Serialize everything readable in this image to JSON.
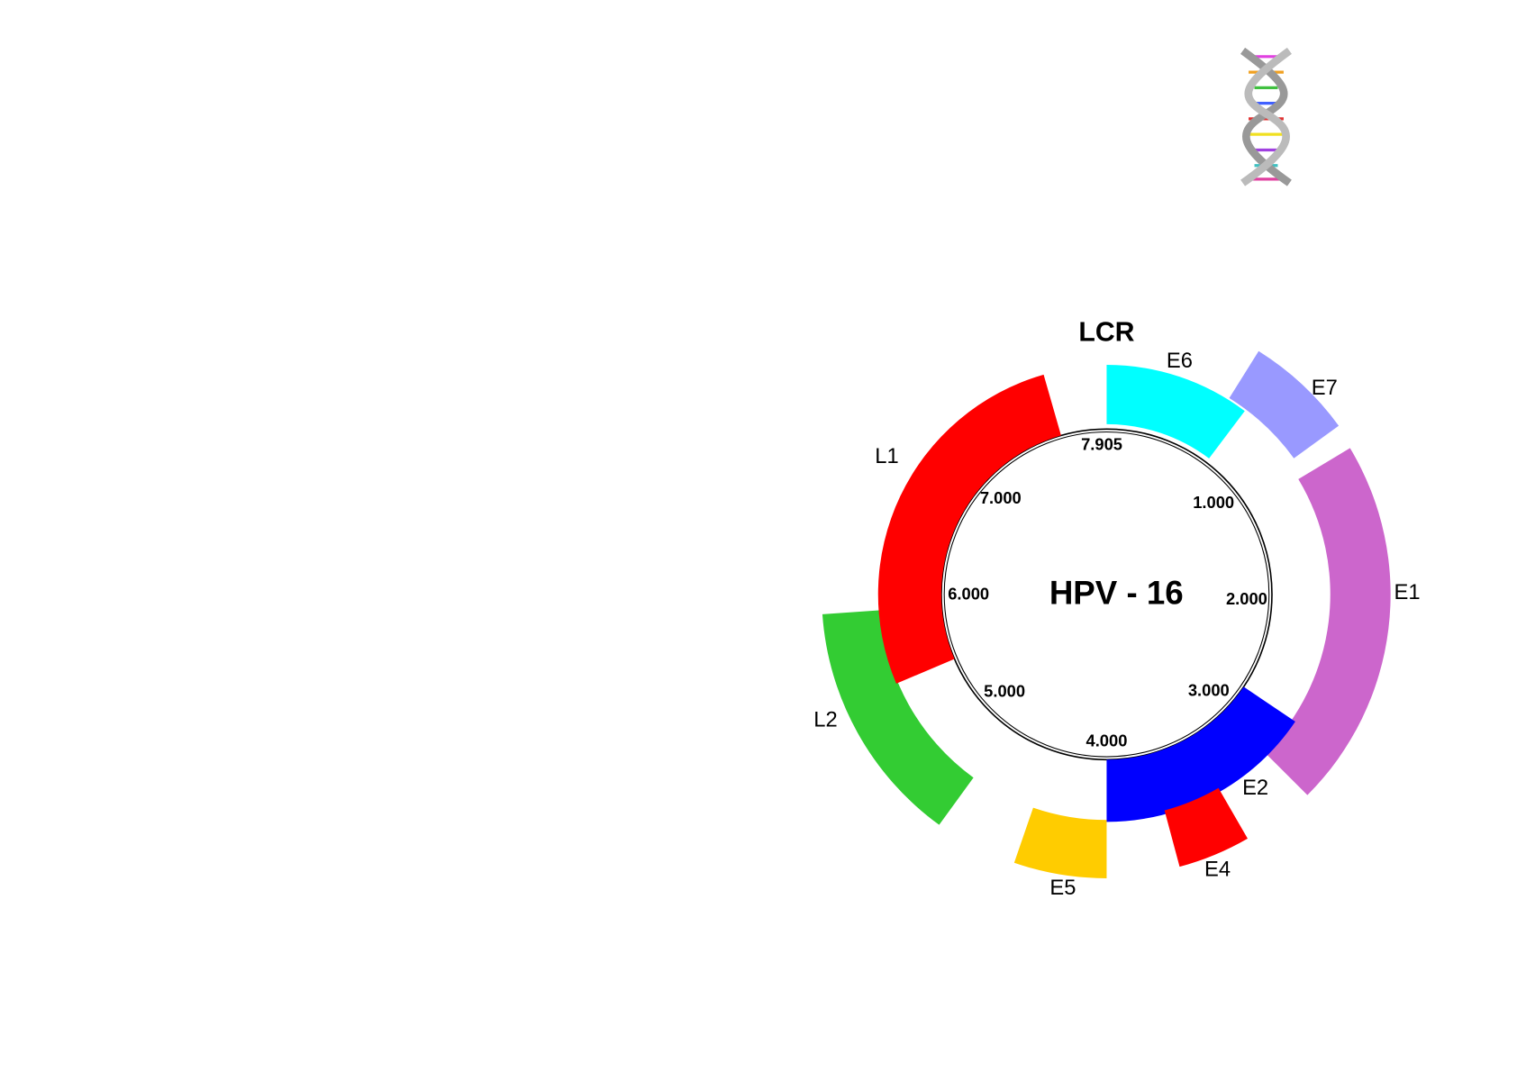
{
  "title": "HPV - 16",
  "region_label": "LCR",
  "positions": [
    "7.905",
    "1.000",
    "2.000",
    "3.000",
    "4.000",
    "5.000",
    "6.000",
    "7.000"
  ],
  "genes": [
    {
      "label": "E6",
      "color": "#00ffff"
    },
    {
      "label": "E7",
      "color": "#9999ff"
    },
    {
      "label": "E1",
      "color": "#cc66cc"
    },
    {
      "label": "E2",
      "color": "#0000ff"
    },
    {
      "label": "E4",
      "color": "#ff0000"
    },
    {
      "label": "E5",
      "color": "#ffcc00"
    },
    {
      "label": "L2",
      "color": "#33cc33"
    },
    {
      "label": "L1",
      "color": "#ff0000"
    }
  ]
}
